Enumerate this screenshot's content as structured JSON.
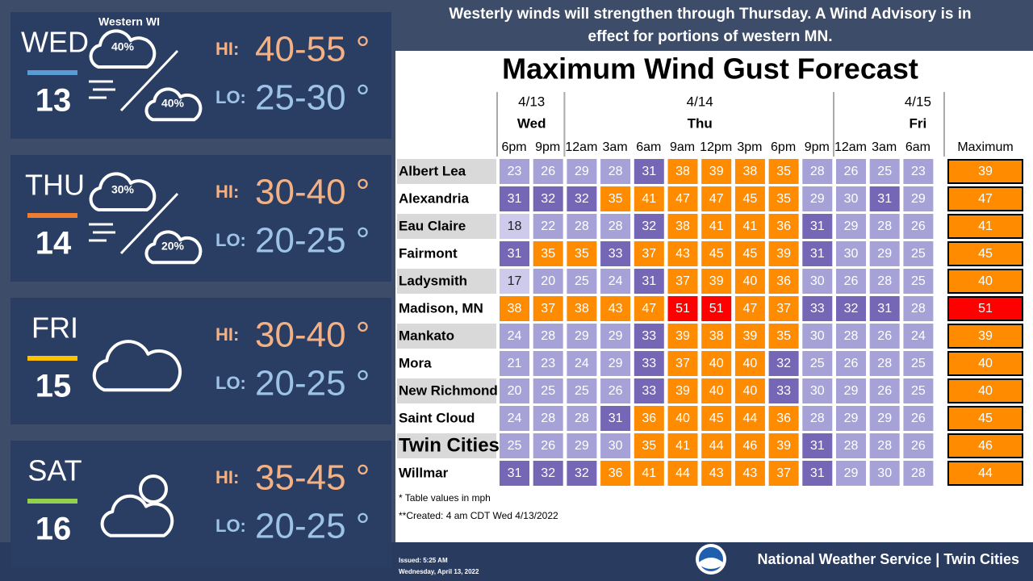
{
  "region_label": "Western WI",
  "days": [
    {
      "name": "WED",
      "date": "13",
      "hi_label": "HI:",
      "hi": "40-55 °",
      "lo_label": "LO:",
      "lo": "25-30 °",
      "bar_color": "#5b9bd5",
      "probs": [
        "40%",
        "40%"
      ]
    },
    {
      "name": "THU",
      "date": "14",
      "hi_label": "HI:",
      "hi": "30-40 °",
      "lo_label": "LO:",
      "lo": "20-25 °",
      "bar_color": "#ed7d31",
      "probs": [
        "30%",
        "20%"
      ]
    },
    {
      "name": "FRI",
      "date": "15",
      "hi_label": "HI:",
      "hi": "30-40 °",
      "lo_label": "LO:",
      "lo": "20-25 °",
      "bar_color": "#ffc000",
      "probs": []
    },
    {
      "name": "SAT",
      "date": "16",
      "hi_label": "HI:",
      "hi": "35-45 °",
      "lo_label": "LO:",
      "lo": "20-25 °",
      "bar_color": "#92d050",
      "probs": []
    }
  ],
  "headline": [
    "Westerly winds will strengthen through Thursday.  A Wind Advisory is in",
    "effect for portions of western MN."
  ],
  "table": {
    "title": "Maximum Wind Gust Forecast",
    "groups": [
      {
        "date": "4/13",
        "day": "Wed"
      },
      {
        "date": "4/14",
        "day": "Thu"
      },
      {
        "date": "4/15",
        "day": "Fri"
      }
    ],
    "times": [
      "6pm",
      "9pm",
      "12am",
      "3am",
      "6am",
      "9am",
      "12pm",
      "3pm",
      "6pm",
      "9pm",
      "12am",
      "3am",
      "6am"
    ],
    "max_header": "Maximum",
    "rows": [
      {
        "name": "Albert Lea",
        "values": [
          23,
          26,
          29,
          28,
          31,
          38,
          39,
          38,
          35,
          28,
          26,
          25,
          23
        ],
        "max": 39
      },
      {
        "name": "Alexandria",
        "values": [
          31,
          32,
          32,
          35,
          41,
          47,
          47,
          45,
          35,
          29,
          30,
          31,
          29
        ],
        "max": 47
      },
      {
        "name": "Eau Claire",
        "values": [
          18,
          22,
          28,
          28,
          32,
          38,
          41,
          41,
          36,
          31,
          29,
          28,
          26
        ],
        "max": 41
      },
      {
        "name": "Fairmont",
        "values": [
          31,
          35,
          35,
          33,
          37,
          43,
          45,
          45,
          39,
          31,
          30,
          29,
          25
        ],
        "max": 45
      },
      {
        "name": "Ladysmith",
        "values": [
          17,
          20,
          25,
          24,
          31,
          37,
          39,
          40,
          36,
          30,
          26,
          28,
          25
        ],
        "max": 40
      },
      {
        "name": "Madison, MN",
        "values": [
          38,
          37,
          38,
          43,
          47,
          51,
          51,
          47,
          37,
          33,
          32,
          31,
          28
        ],
        "max": 51
      },
      {
        "name": "Mankato",
        "values": [
          24,
          28,
          29,
          29,
          33,
          39,
          38,
          39,
          35,
          30,
          28,
          26,
          24
        ],
        "max": 39
      },
      {
        "name": "Mora",
        "values": [
          21,
          23,
          24,
          29,
          33,
          37,
          40,
          40,
          32,
          25,
          26,
          28,
          25
        ],
        "max": 40
      },
      {
        "name": "New Richmond",
        "values": [
          20,
          25,
          25,
          26,
          33,
          39,
          40,
          40,
          33,
          30,
          29,
          26,
          25
        ],
        "max": 40
      },
      {
        "name": "Saint Cloud",
        "values": [
          24,
          28,
          28,
          31,
          36,
          40,
          45,
          44,
          36,
          28,
          29,
          29,
          26
        ],
        "max": 45
      },
      {
        "name": "Twin Cities",
        "values": [
          25,
          26,
          29,
          30,
          35,
          41,
          44,
          46,
          39,
          31,
          28,
          28,
          26
        ],
        "max": 46
      },
      {
        "name": "Willmar",
        "values": [
          31,
          32,
          32,
          36,
          41,
          44,
          43,
          43,
          37,
          31,
          29,
          30,
          28
        ],
        "max": 44
      }
    ],
    "notes": [
      "* Table values in mph",
      "**Created: 4 am CDT Wed 4/13/2022"
    ]
  },
  "footer": {
    "issued": "Issued: 5:25 AM",
    "issued_date": "Wednesday, April 13, 2022",
    "office": "National Weather Service | Twin Cities"
  }
}
